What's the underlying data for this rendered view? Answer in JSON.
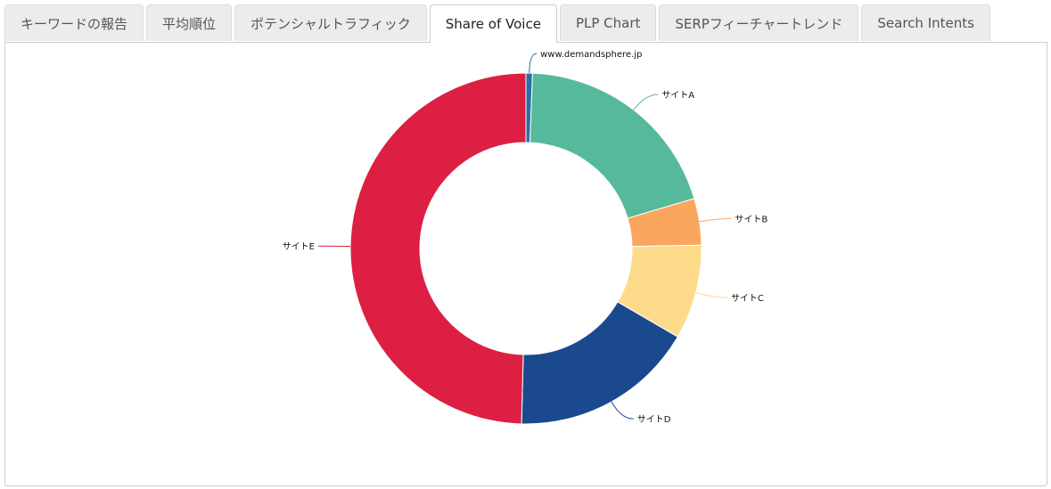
{
  "tabs": [
    {
      "label": "キーワードの報告",
      "active": false
    },
    {
      "label": "平均順位",
      "active": false
    },
    {
      "label": "ポテンシャルトラフィック",
      "active": false
    },
    {
      "label": "Share of Voice",
      "active": true
    },
    {
      "label": "PLP Chart",
      "active": false
    },
    {
      "label": "SERPフィーチャートレンド",
      "active": false
    },
    {
      "label": "Search Intents",
      "active": false
    }
  ],
  "chart_data": {
    "type": "pie",
    "donut": true,
    "title": "",
    "legend": "none",
    "categories": [
      "www.demandsphere.jp",
      "サイトA",
      "サイトB",
      "サイトC",
      "サイトD",
      "サイトE"
    ],
    "values": [
      0.6,
      19.8,
      4.3,
      8.7,
      17.0,
      49.6
    ],
    "colors": [
      "#2f6ea5",
      "#56b99b",
      "#fba65f",
      "#fddb8a",
      "#1a4a8d",
      "#dc1f42"
    ]
  }
}
